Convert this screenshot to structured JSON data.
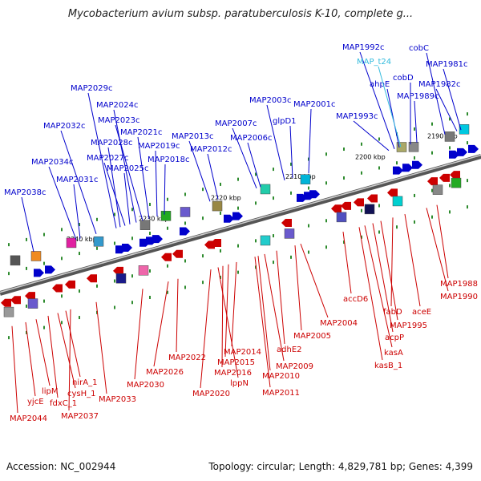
{
  "title": "Mycobacterium avium subsp. paratuberculosis K-10, complete g...",
  "footer": {
    "accession": "Accession: NC_002944",
    "summary": "Topology: circular; Length: 4,829,781 bp; Genes: 4,399"
  },
  "colors": {
    "forward": "#0000cc",
    "reverse": "#cc0000",
    "trna": "#33bbdd",
    "backbone": "#777777"
  },
  "kbp_ticks": [
    "2240 kbp",
    "2230 kbp",
    "2220 kbp",
    "2210 kbp",
    "2200 kbp",
    "2190 kbp"
  ],
  "forward_genes": [
    "MAP2038c",
    "MAP2034c",
    "MAP2032c",
    "MAP2031c",
    "MAP2029c",
    "MAP2028c",
    "MAP2027c",
    "MAP2025c",
    "MAP2024c",
    "MAP2023c",
    "MAP2021c",
    "MAP2019c",
    "MAP2018c",
    "MAP2013c",
    "MAP2012c",
    "MAP2007c",
    "MAP2006c",
    "MAP2003c",
    "glpD1",
    "MAP2001c",
    "MAP1993c",
    "MAP1992c",
    "ahpE",
    "cobD",
    "MAP1989c",
    "cobC",
    "MAP1982c",
    "MAP1981c"
  ],
  "trna_genes": [
    "MAP_t24"
  ],
  "reverse_genes": [
    "MAP1988",
    "MAP1990",
    "accD6",
    "aceE",
    "fabD",
    "MAP1995",
    "acpP",
    "kasA",
    "kasB_1",
    "MAP2004",
    "MAP2005",
    "adhE2",
    "MAP2009",
    "MAP2010",
    "MAP2011",
    "MAP2014",
    "MAP2015",
    "MAP2016",
    "lppN",
    "MAP2020",
    "MAP2022",
    "MAP2026",
    "MAP2030",
    "MAP2033",
    "nirA_1",
    "cysH_1",
    "fdxC_1",
    "lipM",
    "yjcE",
    "MAP2037",
    "MAP2044"
  ]
}
